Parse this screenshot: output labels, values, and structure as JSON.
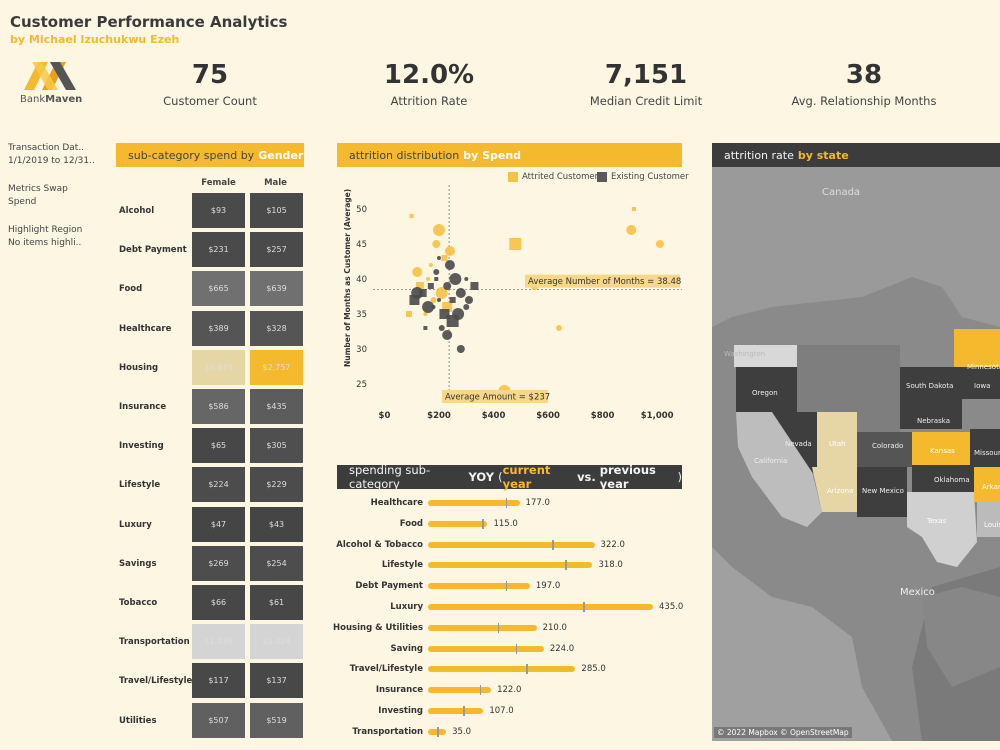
{
  "header": {
    "title": "Customer Performance Analytics",
    "subtitle": "by Michael Izuchukwu Ezeh",
    "logo_text_a": "Bank",
    "logo_text_b": "Maven"
  },
  "colors": {
    "accent": "#f5b92e",
    "dark": "#3c3c3c",
    "background": "#fdf6e3"
  },
  "kpis": [
    {
      "value": "75",
      "label": "Customer Count"
    },
    {
      "value": "12.0%",
      "label": "Attrition Rate"
    },
    {
      "value": "7,151",
      "label": "Median Credit Limit"
    },
    {
      "value": "38",
      "label": "Avg. Relationship Months"
    }
  ],
  "filters": {
    "transaction_label": "Transaction Dat..",
    "transaction_value": "1/1/2019 to 12/31..",
    "metrics_label": "Metrics Swap",
    "metrics_value": "Spend",
    "highlight_label": "Highlight Region",
    "highlight_value": "No items highli.."
  },
  "gender_panel": {
    "title": "sub-category spend by",
    "title_hi": "Gender",
    "col_female": "Female",
    "col_male": "Male",
    "rows": [
      {
        "label": "Alcohol",
        "female": "$93",
        "male": "$105",
        "fc": "#4a4a4a",
        "mc": "#4a4a4a"
      },
      {
        "label": "Debt Payment",
        "female": "$231",
        "male": "$257",
        "fc": "#4a4a4a",
        "mc": "#4a4a4a"
      },
      {
        "label": "Food",
        "female": "$665",
        "male": "$639",
        "fc": "#707070",
        "mc": "#707070"
      },
      {
        "label": "Healthcare",
        "female": "$389",
        "male": "$328",
        "fc": "#555555",
        "mc": "#555555"
      },
      {
        "label": "Housing",
        "female": "$1,873",
        "male": "$2,757",
        "fc": "#e6d6a6",
        "mc": "#f5b92e"
      },
      {
        "label": "Insurance",
        "female": "$586",
        "male": "$435",
        "fc": "#666666",
        "mc": "#5c5c5c"
      },
      {
        "label": "Investing",
        "female": "$65",
        "male": "$305",
        "fc": "#474747",
        "mc": "#4f4f4f"
      },
      {
        "label": "Lifestyle",
        "female": "$224",
        "male": "$229",
        "fc": "#4c4c4c",
        "mc": "#4c4c4c"
      },
      {
        "label": "Luxury",
        "female": "$47",
        "male": "$43",
        "fc": "#454545",
        "mc": "#454545"
      },
      {
        "label": "Savings",
        "female": "$269",
        "male": "$254",
        "fc": "#4d4d4d",
        "mc": "#4d4d4d"
      },
      {
        "label": "Tobacco",
        "female": "$66",
        "male": "$61",
        "fc": "#474747",
        "mc": "#474747"
      },
      {
        "label": "Transportation",
        "female": "$1,439",
        "male": "$1,424",
        "fc": "#d4d4d4",
        "mc": "#d4d4d4"
      },
      {
        "label": "Travel/Lifestyle",
        "female": "$117",
        "male": "$137",
        "fc": "#484848",
        "mc": "#484848"
      },
      {
        "label": "Utilities",
        "female": "$507",
        "male": "$519",
        "fc": "#606060",
        "mc": "#606060"
      }
    ]
  },
  "scatter_panel": {
    "title": "attrition distribution",
    "title_hi": "by Spend",
    "legend_attrited": "Attrited Customer",
    "legend_existing": "Existing Customer",
    "ylabel": "Number of Months as Customer (Average)",
    "avg_months_label": "Average Number of Months = 38.48",
    "avg_amount_label": "Average Amount = $237",
    "x_ticks": [
      "$0",
      "$200",
      "$400",
      "$600",
      "$800",
      "$1,000"
    ],
    "y_ticks": [
      "50",
      "45",
      "40",
      "35",
      "30",
      "25"
    ]
  },
  "yoy_panel": {
    "title": "spending sub-category",
    "title_yoy": "YOY",
    "title_cur": "current year",
    "title_vs": "vs.",
    "title_prev": "previous year"
  },
  "map_panel": {
    "title": "attrition rate",
    "title_hi": "by state",
    "attribution": "© 2022 Mapbox © OpenStreetMap",
    "labels": [
      "Canada",
      "Washington",
      "Oregon",
      "Nevada",
      "California",
      "Utah",
      "Arizona",
      "Colorado",
      "New Mexico",
      "Kansas",
      "Nebraska",
      "South Dakota",
      "Oklahoma",
      "Texas",
      "Iowa",
      "Missouri",
      "Minnesota",
      "Arkansas",
      "Louisiana",
      "Mexico"
    ]
  },
  "chart_data": [
    {
      "type": "scatter",
      "title": "attrition distribution by Spend",
      "xlabel": "",
      "ylabel": "Number of Months as Customer (Average)",
      "xlim": [
        -20,
        1080
      ],
      "ylim": [
        22,
        52
      ],
      "x_ticks": [
        0,
        200,
        400,
        600,
        800,
        1000
      ],
      "y_ticks": [
        25,
        30,
        35,
        40,
        45,
        50
      ],
      "reference_lines": {
        "x": 237,
        "y": 38.48
      },
      "series": [
        {
          "name": "Attrited Customer",
          "color": "#f5c242",
          "points": [
            [
              100,
              49
            ],
            [
              190,
              45
            ],
            [
              200,
              47
            ],
            [
              220,
              43
            ],
            [
              240,
              44
            ],
            [
              170,
              42
            ],
            [
              130,
              39
            ],
            [
              210,
              38
            ],
            [
              180,
              37
            ],
            [
              230,
              36
            ],
            [
              150,
              35
            ],
            [
              550,
              39
            ],
            [
              480,
              45
            ],
            [
              640,
              33
            ],
            [
              905,
              47
            ],
            [
              915,
              50
            ],
            [
              1010,
              45
            ],
            [
              440,
              24
            ],
            [
              90,
              35
            ],
            [
              120,
              41
            ],
            [
              160,
              40
            ]
          ]
        },
        {
          "name": "Existing Customer",
          "color": "#4a4a4a",
          "points": [
            [
              190,
              40
            ],
            [
              230,
              39
            ],
            [
              260,
              40
            ],
            [
              250,
              37
            ],
            [
              280,
              38
            ],
            [
              200,
              37
            ],
            [
              140,
              38
            ],
            [
              160,
              36
            ],
            [
              300,
              36
            ],
            [
              220,
              35
            ],
            [
              180,
              36
            ],
            [
              310,
              37
            ],
            [
              250,
              34
            ],
            [
              210,
              33
            ],
            [
              230,
              32
            ],
            [
              150,
              33
            ],
            [
              280,
              30
            ],
            [
              120,
              38
            ],
            [
              170,
              39
            ],
            [
              240,
              42
            ],
            [
              200,
              43
            ],
            [
              330,
              39
            ],
            [
              270,
              35
            ],
            [
              190,
              41
            ],
            [
              110,
              37
            ],
            [
              300,
              40
            ]
          ]
        }
      ]
    },
    {
      "type": "bar",
      "title": "spending sub-category YOY (current year vs. previous year)",
      "categories": [
        "Healthcare",
        "Food",
        "Alcohol & Tobacco",
        "Lifestyle",
        "Debt Payment",
        "Luxury",
        "Housing & Utilities",
        "Saving",
        "Travel/Lifestyle",
        "Insurance",
        "Investing",
        "Transportation"
      ],
      "values": [
        177.0,
        115.0,
        322.0,
        318.0,
        197.0,
        435.0,
        210.0,
        224.0,
        285.0,
        122.0,
        107.0,
        35.0
      ],
      "previous": [
        150,
        105,
        240,
        265,
        150,
        300,
        135,
        170,
        190,
        100,
        68,
        18
      ],
      "labels": [
        "177.0",
        "115.0",
        "322.0",
        "318.0",
        "197.0",
        "435.0",
        "210.0",
        "224.0",
        "285.0",
        "122.0",
        "107.0",
        "35.0"
      ]
    }
  ]
}
